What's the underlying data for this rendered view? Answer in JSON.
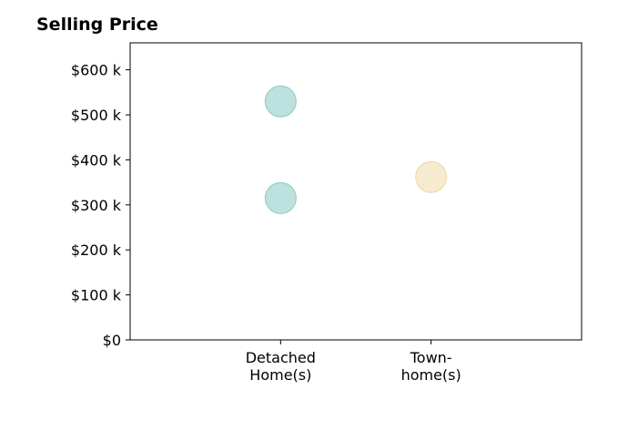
{
  "chart_data": {
    "type": "scatter",
    "title": "Selling Price",
    "xlabel": "",
    "ylabel": "",
    "categories": [
      [
        "Detached",
        "Home(s)"
      ],
      [
        "Town-",
        "home(s)"
      ]
    ],
    "y_ticks": [
      0,
      100,
      200,
      300,
      400,
      500,
      600
    ],
    "y_tick_labels": [
      "$0",
      "$100 k",
      "$200 k",
      "$300 k",
      "$400 k",
      "$500 k",
      "$600 k"
    ],
    "ylim": [
      0,
      660
    ],
    "x_range": [
      0,
      3
    ],
    "grid": false,
    "series": [
      {
        "color": "#b0dcd8",
        "stroke": "#8ccac4",
        "points": [
          {
            "category": 0,
            "value": 530
          },
          {
            "category": 0,
            "value": 315
          }
        ]
      },
      {
        "color": "#f5e6c7",
        "stroke": "#eed7a8",
        "points": [
          {
            "category": 1,
            "value": 362
          }
        ]
      }
    ]
  }
}
